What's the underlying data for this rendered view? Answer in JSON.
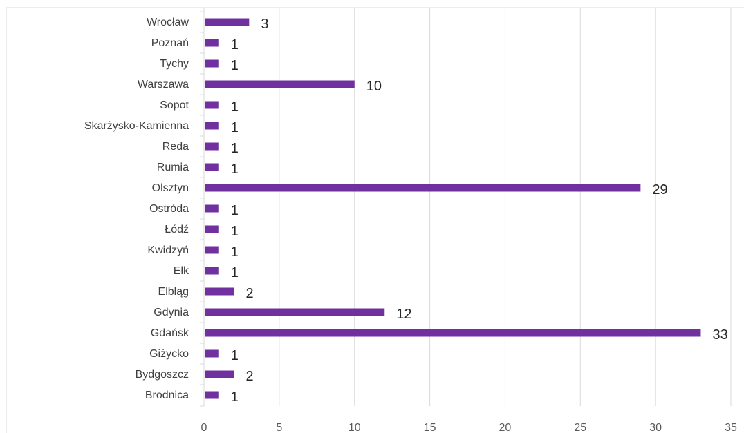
{
  "chart_data": {
    "type": "bar",
    "orientation": "horizontal",
    "title": "",
    "xlabel": "",
    "ylabel": "",
    "categories": [
      "Wrocław",
      "Poznań",
      "Tychy",
      "Warszawa",
      "Sopot",
      "Skarżysko-Kamienna",
      "Reda",
      "Rumia",
      "Olsztyn",
      "Ostróda",
      "Łódź",
      "Kwidzyń",
      "Ełk",
      "Elbląg",
      "Gdynia",
      "Gdańsk",
      "Giżycko",
      "Bydgoszcz",
      "Brodnica"
    ],
    "values": [
      3,
      1,
      1,
      10,
      1,
      1,
      1,
      1,
      29,
      1,
      1,
      1,
      1,
      2,
      12,
      33,
      1,
      2,
      1
    ],
    "data_labels": [
      "3",
      "1",
      "1",
      "10",
      "1",
      "1",
      "1",
      "1",
      "29",
      "1",
      "1",
      "1",
      "1",
      "2",
      "12",
      "33",
      "1",
      "2",
      "1"
    ],
    "xlim": [
      0,
      35
    ],
    "x_ticks": [
      "0",
      "5",
      "10",
      "15",
      "20",
      "25",
      "30",
      "35"
    ],
    "grid": "vertical",
    "legend": "none",
    "colors": {
      "bar": "#7030A0",
      "grid": "#D9D9D9",
      "frame": "#D9D9D9"
    }
  }
}
